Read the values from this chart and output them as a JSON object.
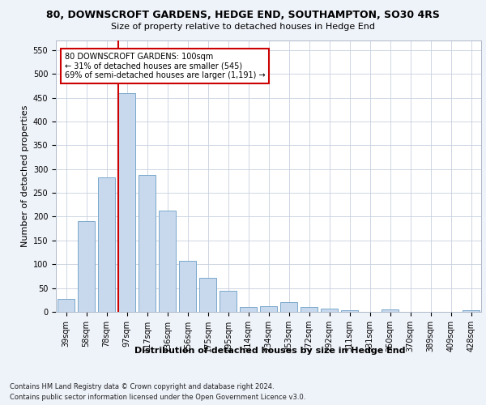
{
  "title1": "80, DOWNSCROFT GARDENS, HEDGE END, SOUTHAMPTON, SO30 4RS",
  "title2": "Size of property relative to detached houses in Hedge End",
  "xlabel": "Distribution of detached houses by size in Hedge End",
  "ylabel": "Number of detached properties",
  "categories": [
    "39sqm",
    "58sqm",
    "78sqm",
    "97sqm",
    "117sqm",
    "136sqm",
    "156sqm",
    "175sqm",
    "195sqm",
    "214sqm",
    "234sqm",
    "253sqm",
    "272sqm",
    "292sqm",
    "311sqm",
    "331sqm",
    "350sqm",
    "370sqm",
    "389sqm",
    "409sqm",
    "428sqm"
  ],
  "values": [
    28,
    190,
    283,
    460,
    288,
    212,
    108,
    72,
    45,
    11,
    12,
    20,
    10,
    6,
    4,
    0,
    5,
    0,
    0,
    0,
    4
  ],
  "bar_color": "#c8d9ed",
  "bar_edge_color": "#7aa8cc",
  "vline_color": "#cc0000",
  "annotation_text": "80 DOWNSCROFT GARDENS: 100sqm\n← 31% of detached houses are smaller (545)\n69% of semi-detached houses are larger (1,191) →",
  "annotation_box_color": "white",
  "annotation_box_edge": "#cc0000",
  "ylim": [
    0,
    570
  ],
  "yticks": [
    0,
    50,
    100,
    150,
    200,
    250,
    300,
    350,
    400,
    450,
    500,
    550
  ],
  "footer1": "Contains HM Land Registry data © Crown copyright and database right 2024.",
  "footer2": "Contains public sector information licensed under the Open Government Licence v3.0.",
  "bg_color": "#eef2f9",
  "plot_bg_color": "#ffffff",
  "grid_color": "#c8d0de",
  "title1_fontsize": 9,
  "title2_fontsize": 8,
  "ylabel_fontsize": 8,
  "xlabel_fontsize": 8,
  "tick_fontsize": 7,
  "annotation_fontsize": 7,
  "footer_fontsize": 6
}
